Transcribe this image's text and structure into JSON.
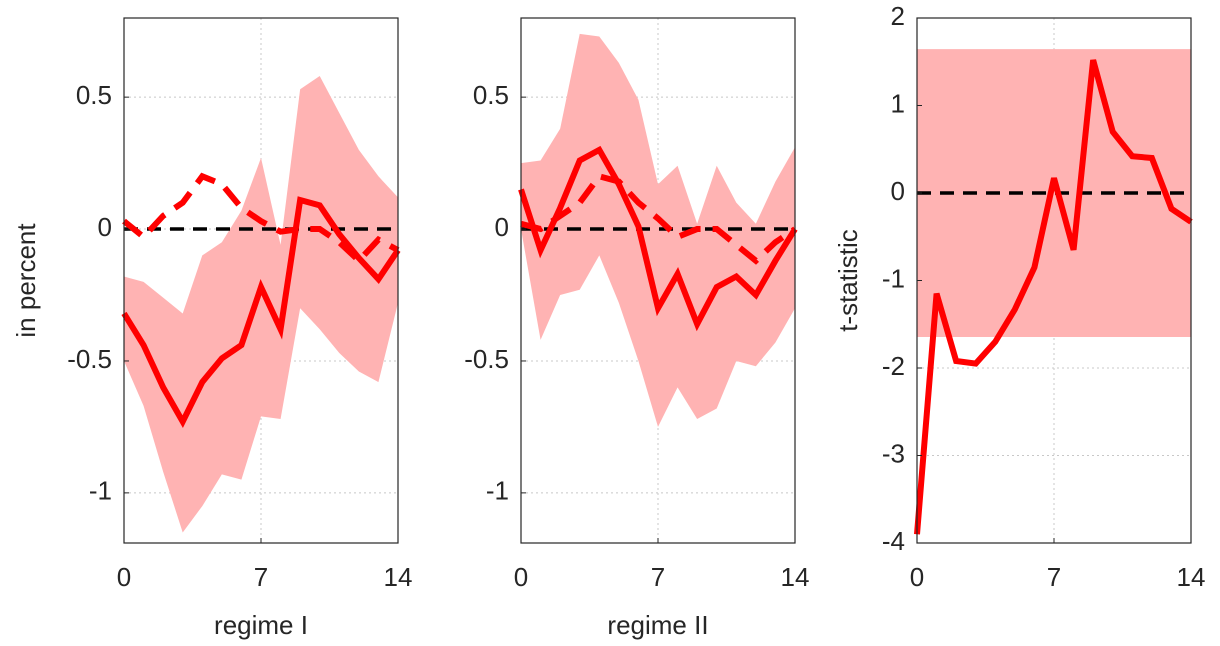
{
  "chart_data": [
    {
      "type": "line",
      "x_label": "regime I",
      "y_label": "in percent",
      "x": [
        0,
        1,
        2,
        3,
        4,
        5,
        6,
        7,
        8,
        9,
        10,
        11,
        12,
        13,
        14
      ],
      "xlim": [
        0,
        14
      ],
      "xticks": [
        0,
        7,
        14
      ],
      "ylim": [
        -1.19,
        0.8
      ],
      "yticks": [
        -1,
        -0.5,
        0,
        0.5
      ],
      "grid": true,
      "hline": 0,
      "hline_color": "#000000",
      "band": {
        "color": "#ffb3b3",
        "upper": [
          -0.18,
          -0.2,
          -0.26,
          -0.32,
          -0.1,
          -0.05,
          0.07,
          0.27,
          -0.06,
          0.53,
          0.58,
          0.44,
          0.3,
          0.2,
          0.12
        ],
        "lower": [
          -0.5,
          -0.67,
          -0.92,
          -1.15,
          -1.05,
          -0.93,
          -0.95,
          -0.71,
          -0.72,
          -0.3,
          -0.38,
          -0.47,
          -0.54,
          -0.58,
          -0.28
        ]
      },
      "series": [
        {
          "color": "#ff0000",
          "style": "solid",
          "values": [
            -0.32,
            -0.44,
            -0.6,
            -0.73,
            -0.58,
            -0.49,
            -0.44,
            -0.22,
            -0.38,
            0.11,
            0.09,
            -0.02,
            -0.11,
            -0.19,
            -0.08
          ]
        },
        {
          "color": "#ff0000",
          "style": "dashed",
          "values": [
            0.03,
            -0.03,
            0.05,
            0.1,
            0.2,
            0.17,
            0.08,
            0.03,
            -0.01,
            0.0,
            0.0,
            -0.05,
            -0.12,
            -0.04,
            -0.08
          ]
        }
      ]
    },
    {
      "type": "line",
      "x_label": "regime II",
      "x": [
        0,
        1,
        2,
        3,
        4,
        5,
        6,
        7,
        8,
        9,
        10,
        11,
        12,
        13,
        14
      ],
      "xlim": [
        0,
        14
      ],
      "xticks": [
        0,
        7,
        14
      ],
      "ylim": [
        -1.19,
        0.8
      ],
      "yticks": [
        -1,
        -0.5,
        0,
        0.5
      ],
      "grid": true,
      "hline": 0,
      "hline_color": "#000000",
      "band": {
        "color": "#ffb3b3",
        "upper": [
          0.25,
          0.26,
          0.38,
          0.74,
          0.73,
          0.63,
          0.49,
          0.17,
          0.24,
          0.02,
          0.24,
          0.1,
          0.02,
          0.18,
          0.31
        ],
        "lower": [
          0.0,
          -0.42,
          -0.25,
          -0.23,
          -0.1,
          -0.28,
          -0.5,
          -0.75,
          -0.6,
          -0.72,
          -0.68,
          -0.5,
          -0.52,
          -0.43,
          -0.3
        ]
      },
      "series": [
        {
          "color": "#ff0000",
          "style": "solid",
          "values": [
            0.15,
            -0.08,
            0.08,
            0.26,
            0.3,
            0.17,
            0.01,
            -0.3,
            -0.17,
            -0.36,
            -0.22,
            -0.18,
            -0.25,
            -0.12,
            0.0
          ]
        },
        {
          "color": "#ff0000",
          "style": "dashed",
          "values": [
            0.02,
            0.0,
            0.05,
            0.1,
            0.2,
            0.18,
            0.1,
            0.04,
            -0.03,
            0.0,
            0.0,
            -0.06,
            -0.12,
            -0.05,
            0.0
          ]
        }
      ]
    },
    {
      "type": "line",
      "y_label": "t-statistic",
      "x": [
        0,
        1,
        2,
        3,
        4,
        5,
        6,
        7,
        8,
        9,
        10,
        11,
        12,
        13,
        14
      ],
      "xlim": [
        0,
        14
      ],
      "xticks": [
        0,
        7,
        14
      ],
      "ylim": [
        -4,
        2
      ],
      "yticks": [
        -4,
        -3,
        -2,
        -1,
        0,
        1,
        2
      ],
      "grid": true,
      "hline": 0,
      "hline_color": "#000000",
      "band": {
        "color": "#ffb3b3",
        "upper": [
          1.645,
          1.645,
          1.645,
          1.645,
          1.645,
          1.645,
          1.645,
          1.645,
          1.645,
          1.645,
          1.645,
          1.645,
          1.645,
          1.645,
          1.645
        ],
        "lower": [
          -1.645,
          -1.645,
          -1.645,
          -1.645,
          -1.645,
          -1.645,
          -1.645,
          -1.645,
          -1.645,
          -1.645,
          -1.645,
          -1.645,
          -1.645,
          -1.645,
          -1.645
        ]
      },
      "series": [
        {
          "color": "#ff0000",
          "style": "solid",
          "values": [
            -3.9,
            -1.15,
            -1.92,
            -1.95,
            -1.7,
            -1.33,
            -0.85,
            0.17,
            -0.65,
            1.52,
            0.7,
            0.42,
            0.4,
            -0.18,
            -0.33
          ]
        }
      ]
    }
  ]
}
